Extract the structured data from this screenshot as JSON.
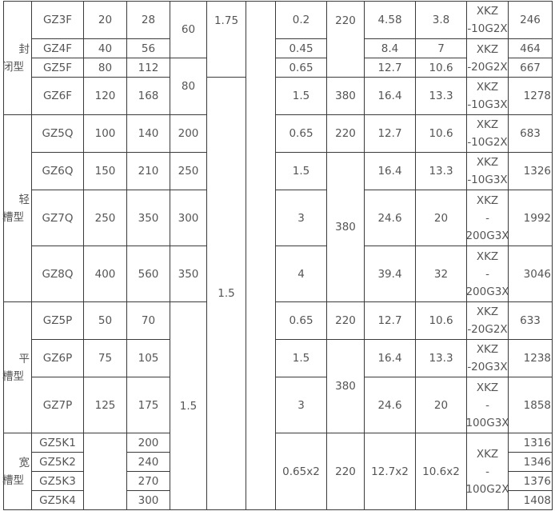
{
  "groups": [
    {
      "line1": "封",
      "line2": "闭型"
    },
    {
      "line1": "轻",
      "line2": "槽型"
    },
    {
      "line1": "平",
      "line2": "槽型"
    },
    {
      "line1": "宽",
      "line2": "槽型"
    }
  ],
  "models": [
    "GZ3F",
    "GZ4F",
    "GZ5F",
    "GZ6F",
    "GZ5Q",
    "GZ6Q",
    "GZ7Q",
    "GZ8Q",
    "GZ5P",
    "GZ6P",
    "GZ7P",
    "GZ5K1",
    "GZ5K2",
    "GZ5K3",
    "GZ5K4"
  ],
  "col2": [
    "20",
    "40",
    "80",
    "120",
    "100",
    "150",
    "250",
    "400",
    "50",
    "75",
    "125",
    ""
  ],
  "col3": [
    "28",
    "56",
    "112",
    "168",
    "140",
    "210",
    "350",
    "560",
    "70",
    "105",
    "175",
    "200",
    "240",
    "270",
    "300"
  ],
  "col4": [
    "60",
    "80",
    "200",
    "250",
    "300",
    "350",
    "1.5"
  ],
  "col5": [
    "1.75",
    "1.5"
  ],
  "col6": [
    ""
  ],
  "col7": [
    "0.2",
    "0.45",
    "0.65",
    "1.5",
    "0.65",
    "1.5",
    "3",
    "4",
    "0.65",
    "1.5",
    "3",
    "0.65x2"
  ],
  "col8": [
    "220",
    "380",
    "220",
    "380",
    "220",
    "380",
    "220"
  ],
  "col9": [
    "4.58",
    "8.4",
    "12.7",
    "16.4",
    "12.7",
    "16.4",
    "24.6",
    "39.4",
    "12.7",
    "16.4",
    "24.6",
    "12.7x2"
  ],
  "col10": [
    "3.8",
    "7",
    "10.6",
    "13.3",
    "10.6",
    "13.3",
    "20",
    "32",
    "10.6",
    "13.3",
    "20",
    "10.6x2"
  ],
  "col11": [
    "XKZ\n-10G2X",
    "XKZ\n-20G2X",
    "XKZ\n-10G3X",
    "XKZ\n-10G2X",
    "XKZ\n-10G3X",
    "XKZ\n-\n200G3X",
    "XKZ\n-\n200G3X",
    "XKZ\n-20G2X",
    "XKZ\n-20G3X",
    "XKZ\n-\n100G3X",
    "XKZ\n-\n100G2X"
  ],
  "col12": [
    "246",
    "464",
    "667",
    "1278",
    "683",
    "1326",
    "1992",
    "3046",
    "633",
    "1238",
    "1858",
    "1316",
    "1346",
    "1376",
    "1408"
  ]
}
